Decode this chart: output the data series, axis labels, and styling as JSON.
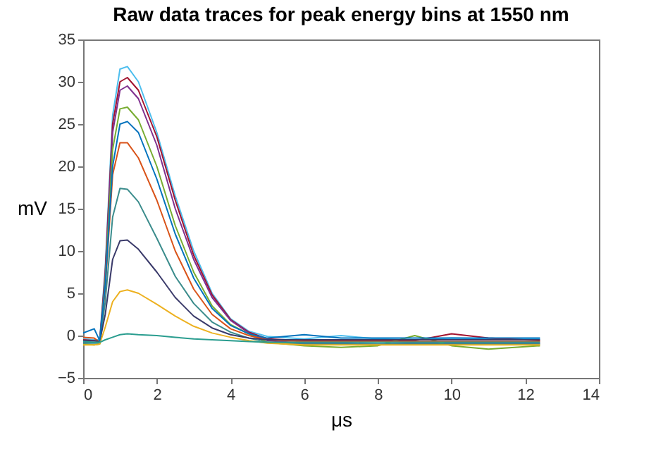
{
  "chart_data": {
    "type": "line",
    "title": "Raw data traces for peak energy bins at 1550 nm",
    "xlabel": "μs",
    "ylabel": "mV",
    "x": [
      0,
      0.3,
      0.45,
      0.6,
      0.8,
      1.0,
      1.2,
      1.5,
      2,
      2.5,
      3,
      3.5,
      4,
      4.5,
      5,
      6,
      7,
      8,
      9,
      10,
      11,
      12.4
    ],
    "series": [
      {
        "color": "#4dbeee",
        "values": [
          -0.4,
          -0.5,
          -0.5,
          8,
          26,
          31.5,
          31.8,
          30,
          24,
          16.5,
          10,
          5,
          2,
          0.5,
          -0.1,
          -0.4,
          0,
          -0.4,
          -0.5,
          -0.3,
          -0.4,
          -0.4
        ]
      },
      {
        "color": "#a2142f",
        "values": [
          -0.5,
          -0.6,
          -0.7,
          7.5,
          25,
          30,
          30.5,
          29,
          23.5,
          16,
          9.5,
          4.8,
          1.9,
          0.4,
          -0.4,
          -0.6,
          -0.6,
          -0.6,
          -0.6,
          0.2,
          -0.3,
          -0.6
        ]
      },
      {
        "color": "#7e2f8e",
        "values": [
          -0.8,
          -0.8,
          -0.9,
          7,
          24,
          29,
          29.5,
          28,
          22.5,
          15,
          9,
          4.5,
          1.8,
          0.3,
          -0.6,
          -0.9,
          -0.9,
          -1.0,
          -0.9,
          -0.9,
          -0.9,
          -0.9
        ]
      },
      {
        "color": "#77ac30",
        "values": [
          -1.0,
          -1.1,
          -1.0,
          6.5,
          22,
          26.8,
          27,
          25.5,
          20,
          13,
          7.5,
          3.5,
          1.3,
          0.2,
          -0.8,
          -1.2,
          -1.4,
          -1.2,
          0,
          -1.2,
          -1.6,
          -1.2
        ]
      },
      {
        "color": "#d95319",
        "values": [
          -0.2,
          -0.3,
          -0.8,
          5.5,
          19,
          22.8,
          22.8,
          21,
          16,
          10,
          5.5,
          2.5,
          0.8,
          0,
          -0.5,
          -0.7,
          -0.7,
          -0.7,
          -0.7,
          -0.7,
          -0.7,
          -0.7
        ]
      },
      {
        "color": "#3b8c8c",
        "values": [
          -0.9,
          -0.9,
          -0.9,
          4,
          14,
          17.4,
          17.3,
          15.8,
          11.5,
          7,
          3.8,
          1.6,
          0.4,
          -0.3,
          -0.8,
          -1.0,
          -1.0,
          -1.0,
          -1.0,
          -1.0,
          -1.0,
          -1.0
        ]
      },
      {
        "color": "#3a3a6a",
        "values": [
          -0.6,
          -0.6,
          -0.7,
          2.5,
          9,
          11.2,
          11.3,
          10.2,
          7.5,
          4.5,
          2.3,
          0.9,
          0.1,
          -0.3,
          -0.5,
          -0.5,
          -0.5,
          -0.5,
          -0.5,
          -0.5,
          -0.5,
          -0.5
        ]
      },
      {
        "color": "#edb120",
        "values": [
          -1.1,
          -1.1,
          -1.0,
          1,
          4,
          5.2,
          5.4,
          5,
          3.7,
          2.3,
          1.1,
          0.3,
          -0.2,
          -0.6,
          -0.9,
          -1.1,
          -1.1,
          -1.1,
          -1.1,
          -1.1,
          -1.1,
          -1.1
        ]
      },
      {
        "color": "#2a9d8f",
        "values": [
          -0.7,
          -0.8,
          -0.8,
          -0.5,
          -0.2,
          0.1,
          0.2,
          0.1,
          0,
          -0.2,
          -0.4,
          -0.5,
          -0.6,
          -0.7,
          -0.8,
          -0.8,
          -0.8,
          -0.8,
          -0.8,
          -0.8,
          -0.8,
          -0.8
        ]
      },
      {
        "color": "#0072bd",
        "values": [
          0.3,
          0.8,
          -0.6,
          6,
          20,
          25,
          25.3,
          24,
          18.5,
          12,
          6.8,
          3.2,
          1.2,
          0.2,
          -0.3,
          0.1,
          -0.3,
          -0.3,
          -0.3,
          -0.3,
          -0.3,
          -0.3
        ]
      }
    ],
    "xlim": [
      0,
      14
    ],
    "xticks": [
      0,
      2,
      4,
      6,
      8,
      10,
      12,
      14
    ],
    "ylim": [
      -5,
      35
    ],
    "yticks": [
      -5,
      0,
      5,
      10,
      15,
      20,
      25,
      30,
      35
    ]
  }
}
